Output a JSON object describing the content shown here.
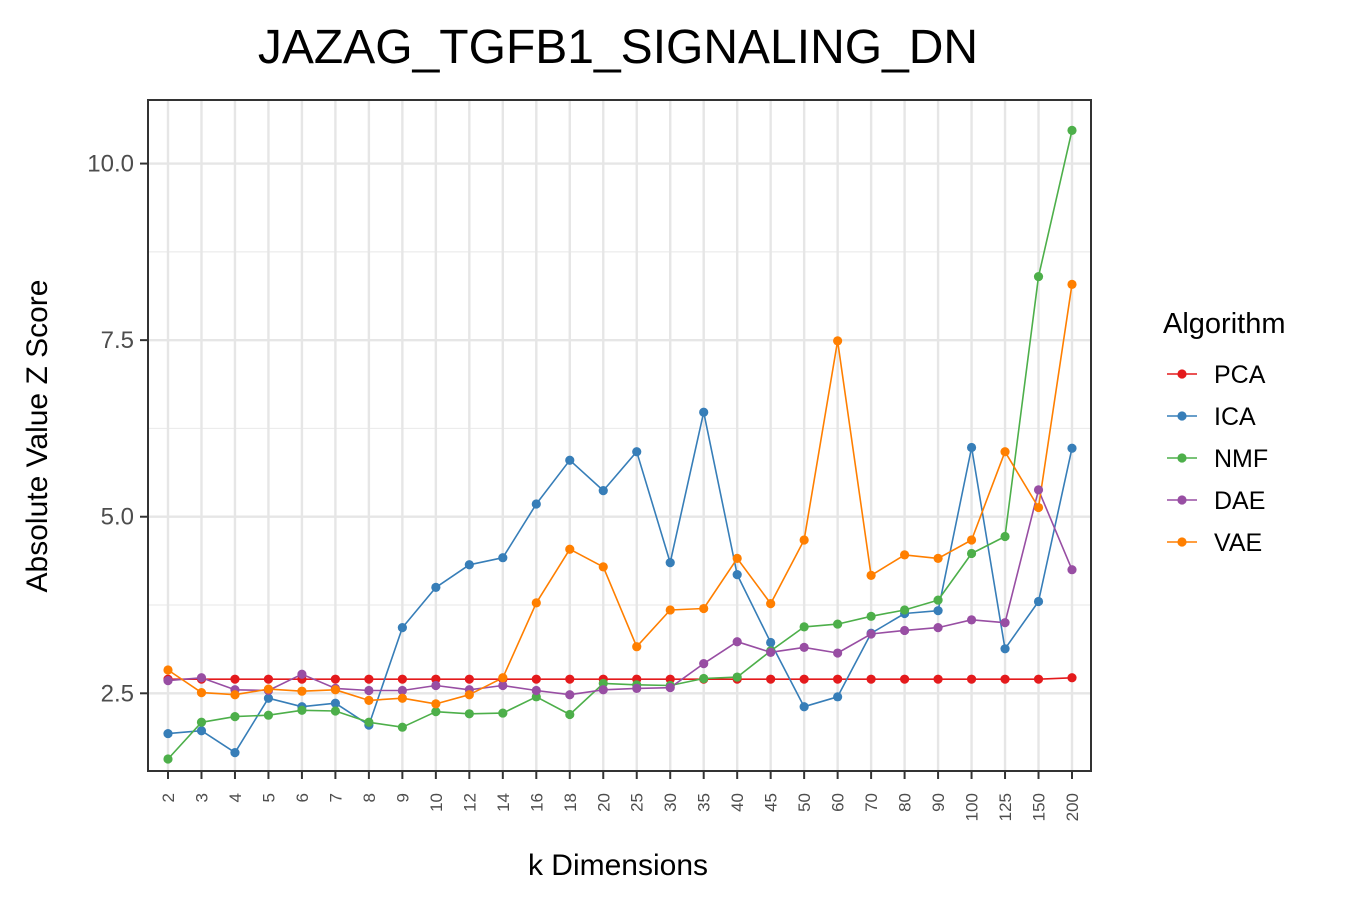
{
  "chart_data": {
    "type": "line",
    "title": "JAZAG_TGFB1_SIGNALING_DN",
    "xlabel": "k Dimensions",
    "ylabel": "Absolute Value Z Score",
    "categories": [
      "2",
      "3",
      "4",
      "5",
      "6",
      "7",
      "8",
      "9",
      "10",
      "12",
      "14",
      "16",
      "18",
      "20",
      "25",
      "30",
      "35",
      "40",
      "45",
      "50",
      "60",
      "70",
      "80",
      "90",
      "100",
      "125",
      "150",
      "200"
    ],
    "ylim": [
      1.4,
      10.9
    ],
    "yticks": [
      2.5,
      5.0,
      7.5,
      10.0
    ],
    "ytick_labels": [
      "2.5",
      "5.0",
      "7.5",
      "10.0"
    ],
    "grid": true,
    "legend": {
      "title": "Algorithm",
      "position": "right"
    },
    "series": [
      {
        "name": "PCA",
        "color": "#e41a1c",
        "values": [
          2.7,
          2.7,
          2.7,
          2.7,
          2.7,
          2.7,
          2.7,
          2.7,
          2.7,
          2.7,
          2.7,
          2.7,
          2.7,
          2.7,
          2.7,
          2.7,
          2.7,
          2.7,
          2.7,
          2.7,
          2.7,
          2.7,
          2.7,
          2.7,
          2.7,
          2.7,
          2.7,
          2.72
        ]
      },
      {
        "name": "ICA",
        "color": "#377eb8",
        "values": [
          1.93,
          1.97,
          1.66,
          2.43,
          2.31,
          2.36,
          2.05,
          3.43,
          4.0,
          4.32,
          4.42,
          5.18,
          5.8,
          5.37,
          5.92,
          4.35,
          6.48,
          4.18,
          3.22,
          2.31,
          2.45,
          3.35,
          3.63,
          3.67,
          5.98,
          3.13,
          3.8,
          5.97
        ]
      },
      {
        "name": "NMF",
        "color": "#4daf4a",
        "values": [
          1.57,
          2.09,
          2.17,
          2.19,
          2.26,
          2.25,
          2.09,
          2.02,
          2.24,
          2.21,
          2.22,
          2.45,
          2.2,
          2.64,
          2.62,
          2.61,
          2.71,
          2.73,
          3.1,
          3.44,
          3.48,
          3.59,
          3.68,
          3.82,
          4.48,
          4.72,
          8.4,
          10.47
        ]
      },
      {
        "name": "DAE",
        "color": "#984ea3",
        "values": [
          2.68,
          2.72,
          2.55,
          2.54,
          2.77,
          2.57,
          2.54,
          2.54,
          2.61,
          2.55,
          2.61,
          2.54,
          2.48,
          2.55,
          2.57,
          2.58,
          2.92,
          3.23,
          3.08,
          3.15,
          3.07,
          3.34,
          3.39,
          3.43,
          3.54,
          3.5,
          5.38,
          4.25
        ]
      },
      {
        "name": "VAE",
        "color": "#ff7f00",
        "values": [
          2.83,
          2.51,
          2.48,
          2.56,
          2.53,
          2.55,
          2.4,
          2.43,
          2.35,
          2.48,
          2.72,
          3.78,
          4.54,
          4.29,
          3.16,
          3.68,
          3.7,
          4.41,
          3.77,
          4.67,
          7.49,
          4.17,
          4.46,
          4.41,
          4.67,
          5.92,
          5.13,
          8.29
        ]
      }
    ]
  }
}
